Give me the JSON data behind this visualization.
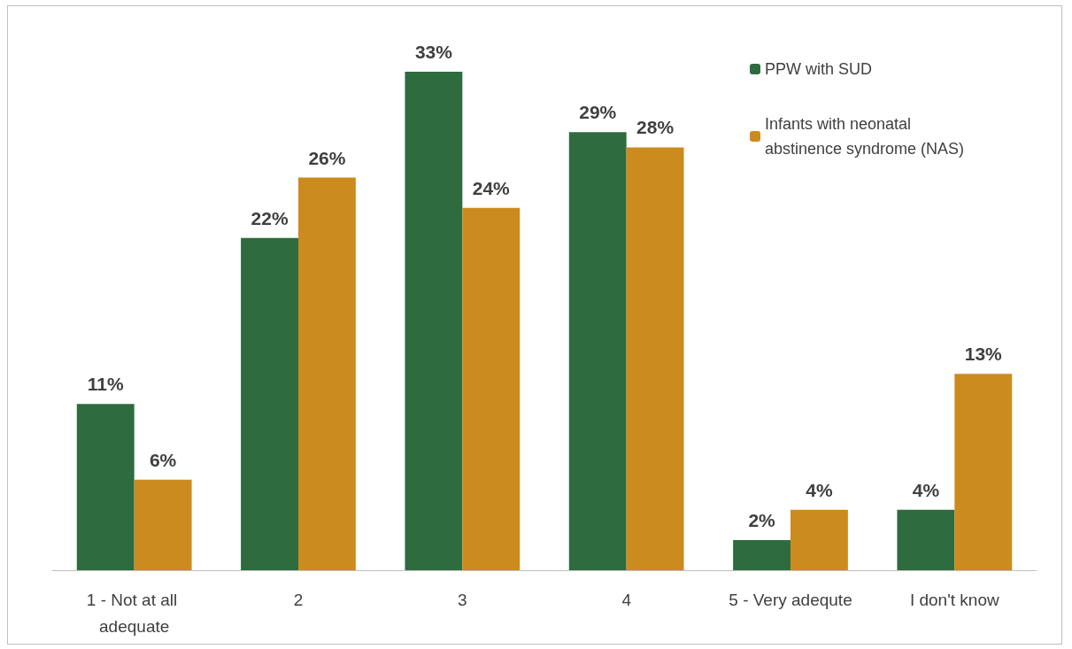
{
  "chart_data": {
    "type": "bar",
    "categories": [
      "1 - Not at all adequate",
      "2",
      "3",
      "4",
      "5 - Very adequte",
      "I don't know"
    ],
    "series": [
      {
        "name": "PPW with SUD",
        "color": "#2e6b3e",
        "values": [
          11,
          22,
          33,
          29,
          2,
          4
        ],
        "value_labels": [
          "11%",
          "22%",
          "33%",
          "29%",
          "2%",
          "4%"
        ]
      },
      {
        "name": "Infants with neonatal abstinence syndrome (NAS)",
        "color": "#cc8b1e",
        "values": [
          6,
          26,
          24,
          28,
          4,
          13
        ],
        "value_labels": [
          "6%",
          "26%",
          "24%",
          "28%",
          "4%",
          "13%"
        ]
      }
    ],
    "legend": "top right"
  }
}
